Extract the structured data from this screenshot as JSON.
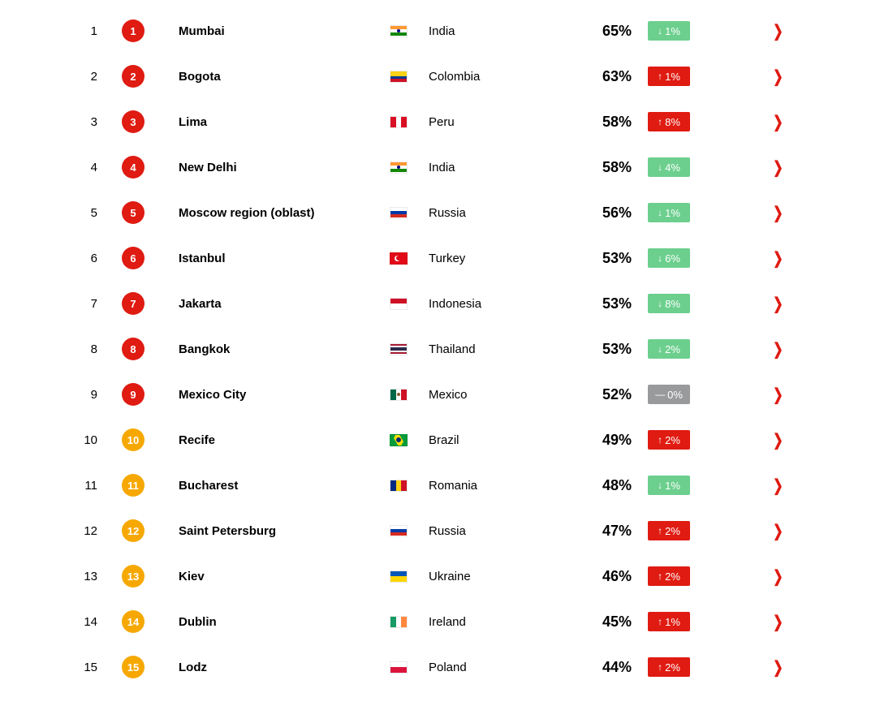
{
  "meta": {
    "type": "table",
    "background_color": "#ffffff"
  },
  "colors": {
    "badge_red": "#df1b12",
    "badge_orange": "#f6a800",
    "delta_down_bg": "#6ccf8e",
    "delta_up_bg": "#df1b12",
    "delta_flat_bg": "#989a9c",
    "chevron": "#df1b12",
    "text": "#000000"
  },
  "rows": [
    {
      "rank": "1",
      "badge": "1",
      "badge_color": "#df1b12",
      "city": "Mumbai",
      "country": "India",
      "flag": "IN",
      "pct": "65%",
      "delta_dir": "down",
      "delta_val": "1%"
    },
    {
      "rank": "2",
      "badge": "2",
      "badge_color": "#df1b12",
      "city": "Bogota",
      "country": "Colombia",
      "flag": "CO",
      "pct": "63%",
      "delta_dir": "up",
      "delta_val": "1%"
    },
    {
      "rank": "3",
      "badge": "3",
      "badge_color": "#df1b12",
      "city": "Lima",
      "country": "Peru",
      "flag": "PE",
      "pct": "58%",
      "delta_dir": "up",
      "delta_val": "8%"
    },
    {
      "rank": "4",
      "badge": "4",
      "badge_color": "#df1b12",
      "city": "New Delhi",
      "country": "India",
      "flag": "IN",
      "pct": "58%",
      "delta_dir": "down",
      "delta_val": "4%"
    },
    {
      "rank": "5",
      "badge": "5",
      "badge_color": "#df1b12",
      "city": "Moscow region (oblast)",
      "country": "Russia",
      "flag": "RU",
      "pct": "56%",
      "delta_dir": "down",
      "delta_val": "1%"
    },
    {
      "rank": "6",
      "badge": "6",
      "badge_color": "#df1b12",
      "city": "Istanbul",
      "country": "Turkey",
      "flag": "TR",
      "pct": "53%",
      "delta_dir": "down",
      "delta_val": "6%"
    },
    {
      "rank": "7",
      "badge": "7",
      "badge_color": "#df1b12",
      "city": "Jakarta",
      "country": "Indonesia",
      "flag": "ID",
      "pct": "53%",
      "delta_dir": "down",
      "delta_val": "8%"
    },
    {
      "rank": "8",
      "badge": "8",
      "badge_color": "#df1b12",
      "city": "Bangkok",
      "country": "Thailand",
      "flag": "TH",
      "pct": "53%",
      "delta_dir": "down",
      "delta_val": "2%"
    },
    {
      "rank": "9",
      "badge": "9",
      "badge_color": "#df1b12",
      "city": "Mexico City",
      "country": "Mexico",
      "flag": "MX",
      "pct": "52%",
      "delta_dir": "flat",
      "delta_val": "0%"
    },
    {
      "rank": "10",
      "badge": "10",
      "badge_color": "#f6a800",
      "city": "Recife",
      "country": "Brazil",
      "flag": "BR",
      "pct": "49%",
      "delta_dir": "up",
      "delta_val": "2%"
    },
    {
      "rank": "11",
      "badge": "11",
      "badge_color": "#f6a800",
      "city": "Bucharest",
      "country": "Romania",
      "flag": "RO",
      "pct": "48%",
      "delta_dir": "down",
      "delta_val": "1%"
    },
    {
      "rank": "12",
      "badge": "12",
      "badge_color": "#f6a800",
      "city": "Saint Petersburg",
      "country": "Russia",
      "flag": "RU",
      "pct": "47%",
      "delta_dir": "up",
      "delta_val": "2%"
    },
    {
      "rank": "13",
      "badge": "13",
      "badge_color": "#f6a800",
      "city": "Kiev",
      "country": "Ukraine",
      "flag": "UA",
      "pct": "46%",
      "delta_dir": "up",
      "delta_val": "2%"
    },
    {
      "rank": "14",
      "badge": "14",
      "badge_color": "#f6a800",
      "city": "Dublin",
      "country": "Ireland",
      "flag": "IE",
      "pct": "45%",
      "delta_dir": "up",
      "delta_val": "1%"
    },
    {
      "rank": "15",
      "badge": "15",
      "badge_color": "#f6a800",
      "city": "Lodz",
      "country": "Poland",
      "flag": "PL",
      "pct": "44%",
      "delta_dir": "up",
      "delta_val": "2%"
    }
  ],
  "flags": {
    "IN": {
      "type": "hstripes",
      "stripes": [
        "#ff9933",
        "#ffffff",
        "#138808"
      ],
      "center_dot": "#000080"
    },
    "CO": {
      "type": "hstripes_w",
      "stripes": [
        [
          "#fcd116",
          50
        ],
        [
          "#003893",
          25
        ],
        [
          "#ce1126",
          25
        ]
      ]
    },
    "PE": {
      "type": "vstripes",
      "stripes": [
        "#d91023",
        "#ffffff",
        "#d91023"
      ]
    },
    "RU": {
      "type": "hstripes",
      "stripes": [
        "#ffffff",
        "#0039a6",
        "#d52b1e"
      ]
    },
    "TR": {
      "type": "solid",
      "bg": "#e30a17",
      "moon": true
    },
    "ID": {
      "type": "hstripes",
      "stripes": [
        "#ce1126",
        "#ffffff"
      ]
    },
    "TH": {
      "type": "hstripes_w",
      "stripes": [
        [
          "#a51931",
          16.7
        ],
        [
          "#f4f5f8",
          16.7
        ],
        [
          "#2d2a4a",
          33.2
        ],
        [
          "#f4f5f8",
          16.7
        ],
        [
          "#a51931",
          16.7
        ]
      ]
    },
    "MX": {
      "type": "vstripes",
      "stripes": [
        "#006847",
        "#ffffff",
        "#ce1126"
      ],
      "center_dot": "#8a5a2b"
    },
    "BR": {
      "type": "brazil"
    },
    "RO": {
      "type": "vstripes",
      "stripes": [
        "#002b7f",
        "#fcd116",
        "#ce1126"
      ]
    },
    "UA": {
      "type": "hstripes",
      "stripes": [
        "#0057b7",
        "#ffd700"
      ]
    },
    "IE": {
      "type": "vstripes",
      "stripes": [
        "#169b62",
        "#ffffff",
        "#ff883e"
      ]
    },
    "PL": {
      "type": "hstripes",
      "stripes": [
        "#ffffff",
        "#dc143c"
      ]
    }
  }
}
